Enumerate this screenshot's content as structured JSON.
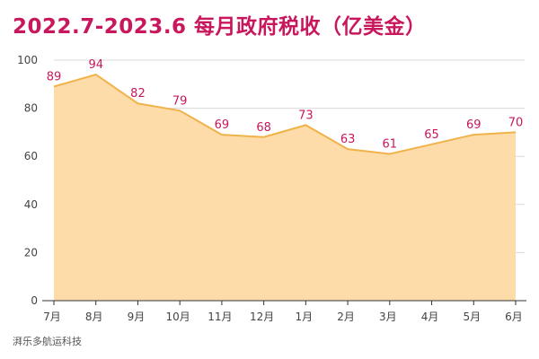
{
  "chart_data": {
    "type": "area",
    "title": "2022.7-2023.6 每月政府税收（亿美金）",
    "categories": [
      "7月",
      "8月",
      "9月",
      "10月",
      "11月",
      "12月",
      "1月",
      "2月",
      "3月",
      "4月",
      "5月",
      "6月"
    ],
    "values": [
      89,
      94,
      82,
      79,
      69,
      68,
      73,
      63,
      61,
      65,
      69,
      70
    ],
    "data_labels": [
      "89",
      "94",
      "82",
      "79",
      "69",
      "68",
      "73",
      "63",
      "61",
      "65",
      "69",
      "70"
    ],
    "yticks": [
      "0",
      "20",
      "40",
      "60",
      "80",
      "100"
    ],
    "ylim": [
      0,
      100
    ],
    "grid": true,
    "legend": "none",
    "colors": {
      "title": "#c8175d",
      "area_fill": "#fddcaa",
      "line": "#f0b24a",
      "data_label": "#c8175d",
      "grid": "#d9d9d9"
    }
  },
  "footer": "湃乐多航运科技"
}
